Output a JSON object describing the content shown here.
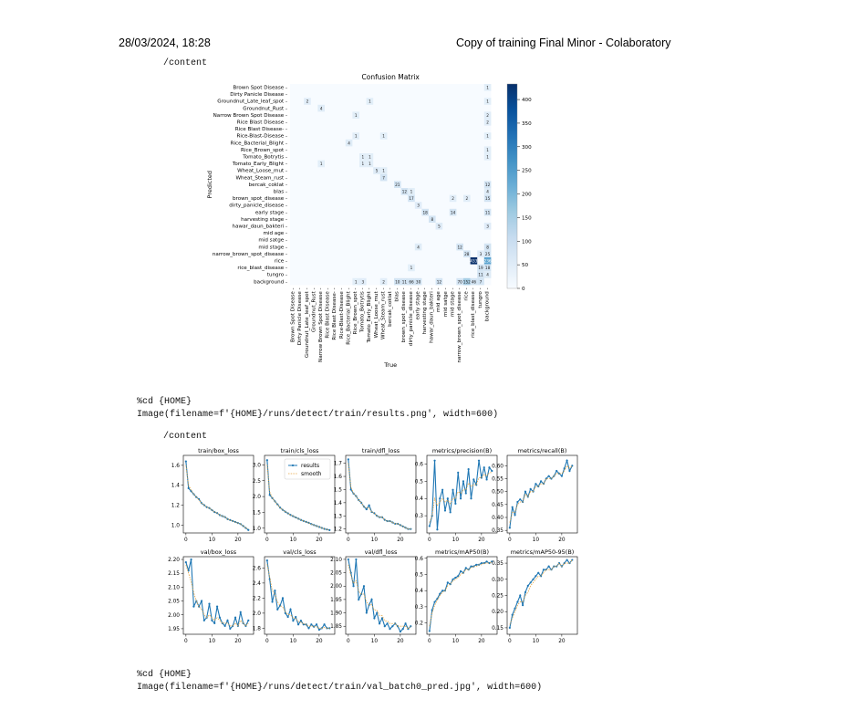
{
  "header": {
    "date": "28/03/2024, 18:28",
    "title": "Copy of training Final Minor - Colaboratory"
  },
  "cells": {
    "out1": "/content",
    "cell2_line1": "%cd {HOME}",
    "cell2_line2": "Image(filename=f'{HOME}/runs/detect/train/results.png', width=600)",
    "out2": "/content",
    "cell3_line1": "%cd {HOME}",
    "cell3_line2": "Image(filename=f'{HOME}/runs/detect/train/val_batch0_pred.jpg', width=600)"
  },
  "chart_data": [
    {
      "type": "heatmap",
      "title": "Confusion Matrix",
      "xlabel": "True",
      "ylabel": "Predicted",
      "labels": [
        "Brown Spot Disease",
        "Dirty Panicle Disease",
        "Groundnut_Late_leaf_spot",
        "Groundnut_Rust",
        "Narrow Brown Spot Disease",
        "Rice Blast Disease",
        "Rice Blast Disease-",
        "Rice-Blast-Disease",
        "Rice_Bacterial_Blight",
        "Rice_Brown_spot",
        "Tomato_Botrytis",
        "Tomato_Early_Blight",
        "Wheat_Loose_mut",
        "Wheat_Steam_rust",
        "bercak_coklat",
        "blas",
        "brown_spot_disease",
        "dirty_panicle_disease",
        "early stage",
        "harvesting stage",
        "hawar_daun_bakteri",
        "mid age",
        "mid satge",
        "mid stage",
        "narrow_brown_spot_disease",
        "rice",
        "rice_blast_disease",
        "tungro",
        "background"
      ],
      "cells": [
        [
          0,
          28,
          1
        ],
        [
          2,
          2,
          2
        ],
        [
          2,
          11,
          1
        ],
        [
          2,
          28,
          1
        ],
        [
          3,
          4,
          4
        ],
        [
          4,
          9,
          1
        ],
        [
          4,
          28,
          2
        ],
        [
          5,
          28,
          2
        ],
        [
          7,
          9,
          1
        ],
        [
          7,
          13,
          1
        ],
        [
          7,
          28,
          1
        ],
        [
          8,
          8,
          4
        ],
        [
          9,
          28,
          1
        ],
        [
          10,
          10,
          1
        ],
        [
          10,
          11,
          1
        ],
        [
          10,
          28,
          1
        ],
        [
          11,
          4,
          1
        ],
        [
          11,
          10,
          1
        ],
        [
          11,
          11,
          1
        ],
        [
          12,
          12,
          5
        ],
        [
          12,
          13,
          1
        ],
        [
          13,
          13,
          7
        ],
        [
          14,
          15,
          21
        ],
        [
          14,
          28,
          12
        ],
        [
          15,
          16,
          12
        ],
        [
          15,
          17,
          1
        ],
        [
          15,
          28,
          4
        ],
        [
          16,
          17,
          17
        ],
        [
          16,
          23,
          2
        ],
        [
          16,
          25,
          2
        ],
        [
          16,
          28,
          15
        ],
        [
          17,
          18,
          3
        ],
        [
          18,
          19,
          18
        ],
        [
          18,
          23,
          14
        ],
        [
          18,
          28,
          11
        ],
        [
          19,
          20,
          8
        ],
        [
          20,
          21,
          5
        ],
        [
          20,
          28,
          3
        ],
        [
          23,
          18,
          4
        ],
        [
          23,
          24,
          12
        ],
        [
          23,
          28,
          8
        ],
        [
          24,
          25,
          28
        ],
        [
          24,
          27,
          3
        ],
        [
          24,
          28,
          25
        ],
        [
          25,
          26,
          433
        ],
        [
          25,
          28,
          236
        ],
        [
          26,
          17,
          1
        ],
        [
          26,
          27,
          19
        ],
        [
          26,
          28,
          18
        ],
        [
          27,
          27,
          11
        ],
        [
          27,
          28,
          4
        ],
        [
          28,
          9,
          1
        ],
        [
          28,
          10,
          3
        ],
        [
          28,
          13,
          2
        ],
        [
          28,
          15,
          10
        ],
        [
          28,
          16,
          11
        ],
        [
          28,
          17,
          66
        ],
        [
          28,
          18,
          30
        ],
        [
          28,
          21,
          12
        ],
        [
          28,
          24,
          70
        ],
        [
          28,
          25,
          152
        ],
        [
          28,
          26,
          46
        ],
        [
          28,
          27,
          7
        ]
      ],
      "colorbar": {
        "ticks": [
          0,
          50,
          100,
          150,
          200,
          250,
          300,
          350,
          400
        ],
        "max": 433
      }
    },
    {
      "type": "line",
      "title": "train/box_loss",
      "series": [
        {
          "name": "results",
          "values": [
            1.64,
            1.37,
            1.34,
            1.31,
            1.28,
            1.26,
            1.22,
            1.2,
            1.18,
            1.17,
            1.15,
            1.13,
            1.12,
            1.1,
            1.09,
            1.08,
            1.06,
            1.05,
            1.04,
            1.03,
            1.02,
            1.01,
            0.99,
            0.97,
            0.95
          ]
        },
        {
          "name": "smooth",
          "values": [
            1.6,
            1.4,
            1.35,
            1.31,
            1.28,
            1.25,
            1.22,
            1.2,
            1.18,
            1.17,
            1.15,
            1.13,
            1.12,
            1.1,
            1.09,
            1.08,
            1.06,
            1.05,
            1.04,
            1.03,
            1.02,
            1.01,
            0.99,
            0.97,
            0.96
          ]
        }
      ],
      "yticks": [
        1.0,
        1.2,
        1.4,
        1.6
      ],
      "ylim": [
        0.92,
        1.7
      ],
      "xticks": [
        0,
        10,
        20
      ],
      "xlim": [
        -1,
        26
      ]
    },
    {
      "type": "line",
      "title": "train/cls_loss",
      "legend": [
        "results",
        "smooth"
      ],
      "series": [
        {
          "name": "results",
          "values": [
            3.15,
            2.05,
            1.95,
            1.85,
            1.75,
            1.65,
            1.58,
            1.52,
            1.47,
            1.42,
            1.38,
            1.34,
            1.3,
            1.26,
            1.23,
            1.2,
            1.17,
            1.13,
            1.1,
            1.07,
            1.04,
            1.01,
            0.98,
            0.96,
            0.94
          ]
        },
        {
          "name": "smooth",
          "values": [
            3.0,
            2.15,
            1.95,
            1.84,
            1.74,
            1.65,
            1.58,
            1.52,
            1.47,
            1.42,
            1.38,
            1.34,
            1.3,
            1.26,
            1.23,
            1.2,
            1.17,
            1.13,
            1.1,
            1.07,
            1.04,
            1.01,
            0.98,
            0.96,
            0.94
          ]
        }
      ],
      "yticks": [
        1.0,
        1.5,
        2.0,
        2.5,
        3.0
      ],
      "ylim": [
        0.85,
        3.3
      ],
      "xticks": [
        0,
        10,
        20
      ],
      "xlim": [
        -1,
        26
      ]
    },
    {
      "type": "line",
      "title": "train/dfl_loss",
      "series": [
        {
          "name": "results",
          "values": [
            1.73,
            1.5,
            1.47,
            1.45,
            1.42,
            1.4,
            1.37,
            1.35,
            1.38,
            1.33,
            1.32,
            1.3,
            1.29,
            1.29,
            1.27,
            1.26,
            1.26,
            1.25,
            1.24,
            1.24,
            1.23,
            1.22,
            1.21,
            1.2,
            1.2
          ]
        },
        {
          "name": "smooth",
          "values": [
            1.7,
            1.52,
            1.47,
            1.45,
            1.42,
            1.4,
            1.37,
            1.36,
            1.36,
            1.33,
            1.32,
            1.3,
            1.29,
            1.29,
            1.27,
            1.26,
            1.26,
            1.25,
            1.24,
            1.24,
            1.23,
            1.22,
            1.21,
            1.2,
            1.2
          ]
        }
      ],
      "yticks": [
        1.2,
        1.3,
        1.4,
        1.5,
        1.6,
        1.7
      ],
      "ylim": [
        1.17,
        1.76
      ],
      "xticks": [
        0,
        10,
        20
      ],
      "xlim": [
        -1,
        26
      ]
    },
    {
      "type": "line",
      "title": "metrics/precision(B)",
      "series": [
        {
          "name": "results",
          "values": [
            0.24,
            0.3,
            0.62,
            0.22,
            0.4,
            0.45,
            0.33,
            0.4,
            0.32,
            0.45,
            0.37,
            0.55,
            0.4,
            0.5,
            0.43,
            0.57,
            0.4,
            0.51,
            0.48,
            0.62,
            0.52,
            0.58,
            0.51,
            0.58,
            0.56
          ]
        },
        {
          "name": "smooth",
          "values": [
            0.26,
            0.3,
            0.4,
            0.36,
            0.38,
            0.4,
            0.38,
            0.39,
            0.37,
            0.4,
            0.4,
            0.44,
            0.43,
            0.45,
            0.45,
            0.49,
            0.47,
            0.48,
            0.48,
            0.52,
            0.52,
            0.54,
            0.53,
            0.55,
            0.55
          ]
        }
      ],
      "yticks": [
        0.3,
        0.4,
        0.5,
        0.6
      ],
      "ylim": [
        0.2,
        0.65
      ],
      "xticks": [
        0,
        10,
        20
      ],
      "xlim": [
        -1,
        26
      ]
    },
    {
      "type": "line",
      "title": "metrics/recall(B)",
      "series": [
        {
          "name": "results",
          "values": [
            0.36,
            0.44,
            0.41,
            0.46,
            0.47,
            0.46,
            0.5,
            0.48,
            0.51,
            0.5,
            0.53,
            0.52,
            0.54,
            0.53,
            0.55,
            0.56,
            0.55,
            0.56,
            0.58,
            0.57,
            0.56,
            0.59,
            0.62,
            0.58,
            0.6
          ]
        },
        {
          "name": "smooth",
          "values": [
            0.38,
            0.42,
            0.42,
            0.45,
            0.46,
            0.46,
            0.49,
            0.48,
            0.5,
            0.5,
            0.52,
            0.52,
            0.53,
            0.53,
            0.55,
            0.55,
            0.55,
            0.56,
            0.57,
            0.57,
            0.57,
            0.58,
            0.6,
            0.59,
            0.6
          ]
        }
      ],
      "yticks": [
        0.35,
        0.4,
        0.45,
        0.5,
        0.55,
        0.6
      ],
      "ylim": [
        0.34,
        0.64
      ],
      "xticks": [
        0,
        10,
        20
      ],
      "xlim": [
        -1,
        26
      ]
    },
    {
      "type": "line",
      "title": "val/box_loss",
      "series": [
        {
          "name": "results",
          "values": [
            2.19,
            2.16,
            2.2,
            2.03,
            2.05,
            2.03,
            2.05,
            1.98,
            1.99,
            2.04,
            1.98,
            1.97,
            2.03,
            1.99,
            1.97,
            1.96,
            1.98,
            1.95,
            1.96,
            1.99,
            1.96,
            2.01,
            1.97,
            1.96,
            1.98
          ]
        },
        {
          "name": "smooth",
          "values": [
            2.18,
            2.15,
            2.12,
            2.08,
            2.05,
            2.03,
            2.02,
            2.0,
            1.99,
            2.0,
            1.99,
            1.98,
            1.99,
            1.98,
            1.97,
            1.97,
            1.97,
            1.96,
            1.96,
            1.97,
            1.96,
            1.98,
            1.97,
            1.96,
            1.97
          ]
        }
      ],
      "yticks": [
        1.95,
        2.0,
        2.05,
        2.1,
        2.15,
        2.2
      ],
      "ylim": [
        1.93,
        2.21
      ],
      "xticks": [
        0,
        10,
        20
      ],
      "xlim": [
        -1,
        26
      ]
    },
    {
      "type": "line",
      "title": "val/cls_loss",
      "series": [
        {
          "name": "results",
          "values": [
            2.7,
            2.45,
            2.15,
            2.3,
            2.05,
            2.1,
            2.2,
            2.0,
            1.95,
            2.05,
            1.9,
            1.95,
            1.85,
            1.9,
            1.85,
            1.85,
            1.8,
            1.85,
            1.82,
            1.85,
            1.78,
            1.8,
            1.85,
            1.8,
            1.8
          ]
        },
        {
          "name": "smooth",
          "values": [
            2.65,
            2.48,
            2.3,
            2.25,
            2.15,
            2.1,
            2.08,
            2.02,
            1.98,
            1.98,
            1.94,
            1.93,
            1.89,
            1.88,
            1.86,
            1.85,
            1.83,
            1.83,
            1.82,
            1.82,
            1.8,
            1.8,
            1.81,
            1.8,
            1.8
          ]
        }
      ],
      "yticks": [
        1.8,
        2.0,
        2.2,
        2.4,
        2.6
      ],
      "ylim": [
        1.72,
        2.75
      ],
      "xticks": [
        0,
        10,
        20
      ],
      "xlim": [
        -1,
        26
      ]
    },
    {
      "type": "line",
      "title": "val/dfl_loss",
      "series": [
        {
          "name": "results",
          "values": [
            2.1,
            2.05,
            2.0,
            2.1,
            1.95,
            1.97,
            2.0,
            1.9,
            1.93,
            1.95,
            1.88,
            1.9,
            1.86,
            1.88,
            1.85,
            1.86,
            1.84,
            1.85,
            1.86,
            1.85,
            1.83,
            1.84,
            1.86,
            1.84,
            1.85
          ]
        },
        {
          "name": "smooth",
          "values": [
            2.08,
            2.04,
            2.01,
            2.02,
            1.98,
            1.97,
            1.97,
            1.94,
            1.93,
            1.93,
            1.91,
            1.91,
            1.89,
            1.89,
            1.87,
            1.87,
            1.86,
            1.86,
            1.86,
            1.85,
            1.85,
            1.85,
            1.85,
            1.84,
            1.85
          ]
        }
      ],
      "yticks": [
        1.85,
        1.9,
        1.95,
        2.0,
        2.05,
        2.1
      ],
      "ylim": [
        1.82,
        2.11
      ],
      "xticks": [
        0,
        10,
        20
      ],
      "xlim": [
        -1,
        26
      ]
    },
    {
      "type": "line",
      "title": "metrics/mAP50(B)",
      "series": [
        {
          "name": "results",
          "values": [
            0.15,
            0.28,
            0.33,
            0.35,
            0.38,
            0.4,
            0.4,
            0.45,
            0.44,
            0.47,
            0.48,
            0.49,
            0.52,
            0.51,
            0.54,
            0.53,
            0.55,
            0.55,
            0.56,
            0.56,
            0.57,
            0.57,
            0.58,
            0.57,
            0.58
          ]
        },
        {
          "name": "smooth",
          "values": [
            0.18,
            0.26,
            0.31,
            0.34,
            0.37,
            0.39,
            0.4,
            0.43,
            0.44,
            0.46,
            0.47,
            0.48,
            0.5,
            0.51,
            0.53,
            0.53,
            0.54,
            0.55,
            0.55,
            0.56,
            0.56,
            0.57,
            0.57,
            0.57,
            0.58
          ]
        }
      ],
      "yticks": [
        0.2,
        0.3,
        0.4,
        0.5,
        0.6
      ],
      "ylim": [
        0.13,
        0.61
      ],
      "xticks": [
        0,
        10,
        20
      ],
      "xlim": [
        -1,
        26
      ]
    },
    {
      "type": "line",
      "title": "metrics/mAP50-95(B)",
      "series": [
        {
          "name": "results",
          "values": [
            0.15,
            0.19,
            0.21,
            0.23,
            0.25,
            0.22,
            0.26,
            0.28,
            0.29,
            0.3,
            0.31,
            0.32,
            0.31,
            0.33,
            0.33,
            0.34,
            0.33,
            0.34,
            0.34,
            0.35,
            0.34,
            0.35,
            0.36,
            0.35,
            0.36
          ]
        },
        {
          "name": "smooth",
          "values": [
            0.16,
            0.18,
            0.2,
            0.22,
            0.23,
            0.23,
            0.25,
            0.26,
            0.28,
            0.29,
            0.3,
            0.31,
            0.31,
            0.32,
            0.33,
            0.33,
            0.33,
            0.34,
            0.34,
            0.35,
            0.34,
            0.35,
            0.35,
            0.35,
            0.36
          ]
        }
      ],
      "yticks": [
        0.15,
        0.2,
        0.25,
        0.3,
        0.35
      ],
      "ylim": [
        0.13,
        0.37
      ],
      "xticks": [
        0,
        10,
        20
      ],
      "xlim": [
        -1,
        26
      ]
    }
  ]
}
